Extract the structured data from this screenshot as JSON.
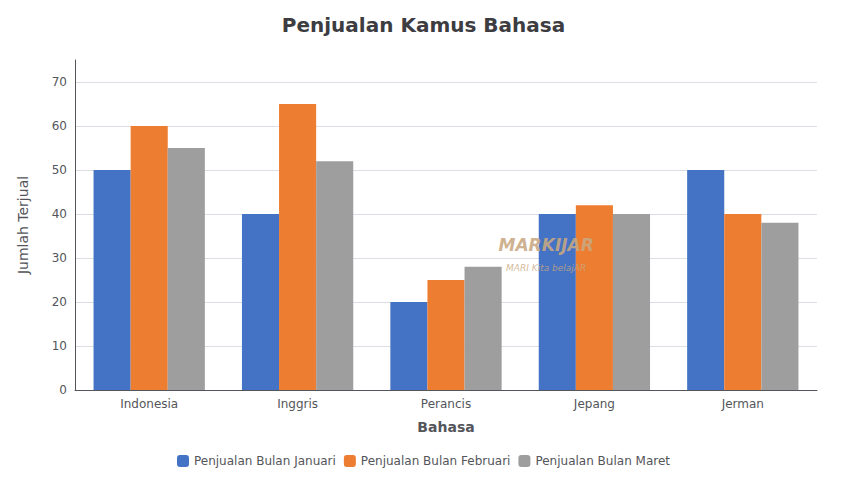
{
  "chart_data": {
    "type": "bar",
    "title": "Penjualan Kamus Bahasa",
    "xlabel": "Bahasa",
    "ylabel": "Jumlah Terjual",
    "categories": [
      "Indonesia",
      "Inggris",
      "Perancis",
      "Jepang",
      "Jerman"
    ],
    "series": [
      {
        "name": "Penjualan Bulan Januari",
        "color": "#4472C4",
        "values": [
          50,
          40,
          20,
          40,
          50
        ]
      },
      {
        "name": "Penjualan Bulan Februari",
        "color": "#ED7D31",
        "values": [
          60,
          65,
          25,
          42,
          40
        ]
      },
      {
        "name": "Penjualan Bulan Maret",
        "color": "#9E9E9E",
        "values": [
          55,
          52,
          28,
          40,
          38
        ]
      }
    ],
    "ylim": [
      0,
      75
    ],
    "yticks": [
      0,
      10,
      20,
      30,
      40,
      50,
      60,
      70
    ],
    "grid": true,
    "legend": "bottom",
    "annotations": [
      "MARKIJAR",
      "MARI Kita belajAR"
    ]
  }
}
